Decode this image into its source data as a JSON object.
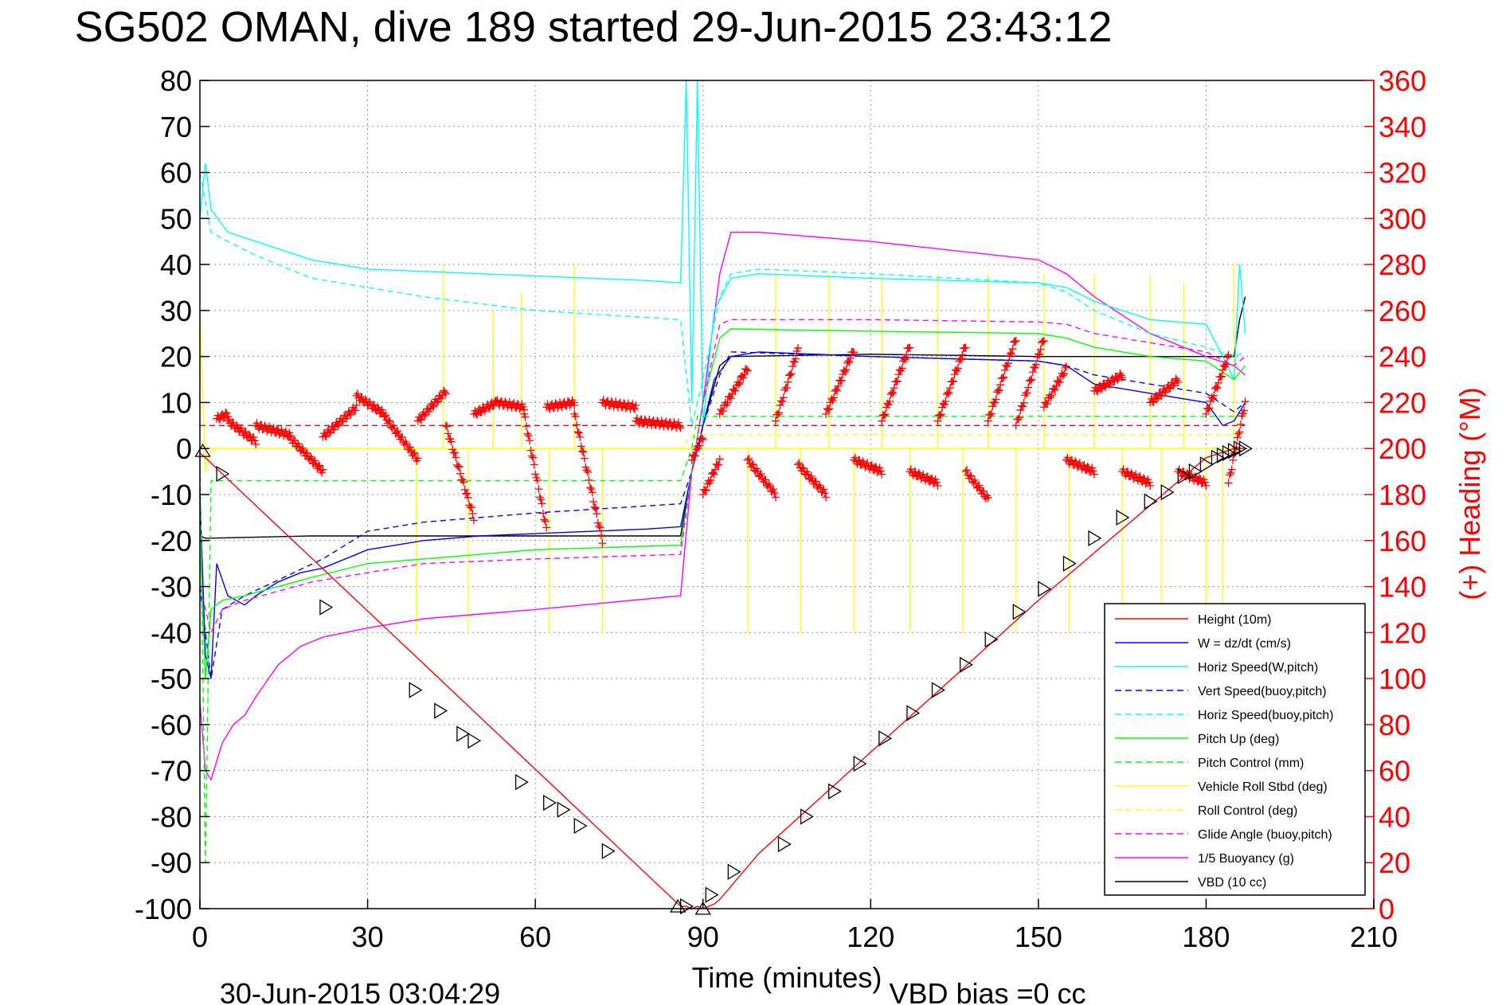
{
  "title": "SG502 OMAN, dive 189 started 29-Jun-2015 23:43:12",
  "xlabel": "Time (minutes)",
  "ylabel_right": "(+) Heading (°M)",
  "footer_left": "30-Jun-2015 03:04:29",
  "footer_right": "VBD bias =0 cc",
  "colors": {
    "height": "#ff0000",
    "w": "#0000ff",
    "horiz_w": "#00ffff",
    "vert_buoy": "#0000ff",
    "horiz_buoy": "#00ffff",
    "pitch": "#00ff00",
    "pitch_ctrl": "#00ff00",
    "roll": "#ffff00",
    "roll_ctrl": "#ffff00",
    "glide": "#ff00ff",
    "buoy": "#ff00ff",
    "vbd": "#000000",
    "heading": "#ff0000",
    "right_axis": "#ff0000"
  },
  "chart_data": {
    "type": "line",
    "xlim": [
      0,
      210
    ],
    "ylim": [
      -100,
      80
    ],
    "y2lim": [
      0,
      360
    ],
    "xticks": [
      0,
      30,
      60,
      90,
      120,
      150,
      180,
      210
    ],
    "yticks": [
      80,
      70,
      60,
      50,
      40,
      30,
      20,
      10,
      0,
      -10,
      -20,
      -30,
      -40,
      -50,
      -60,
      -70,
      -80,
      -90,
      -100
    ],
    "y2ticks": [
      360,
      340,
      320,
      300,
      280,
      260,
      240,
      220,
      200,
      180,
      160,
      140,
      120,
      100,
      80,
      60,
      40,
      20,
      0
    ],
    "grid": true,
    "legend_position": "bottom-right",
    "legend": [
      {
        "label": "Height (10m)",
        "color": "#ff0000",
        "dash": false
      },
      {
        "label": "W = dz/dt (cm/s)",
        "color": "#0000ff",
        "dash": false
      },
      {
        "label": "Horiz Speed(W,pitch)",
        "color": "#00ffff",
        "dash": false
      },
      {
        "label": "Vert Speed(buoy,pitch)",
        "color": "#0000ff",
        "dash": true
      },
      {
        "label": "Horiz Speed(buoy,pitch)",
        "color": "#00ffff",
        "dash": true
      },
      {
        "label": "Pitch Up (deg)",
        "color": "#00ff00",
        "dash": false
      },
      {
        "label": "Pitch Control (mm)",
        "color": "#00ff00",
        "dash": true
      },
      {
        "label": "Vehicle Roll Stbd (deg)",
        "color": "#ffff00",
        "dash": false
      },
      {
        "label": "Roll Control (deg)",
        "color": "#ffff00",
        "dash": true
      },
      {
        "label": "Glide Angle (buoy,pitch)",
        "color": "#ff00ff",
        "dash": true
      },
      {
        "label": "1/5 Buoyancy (g)",
        "color": "#ff00ff",
        "dash": false
      },
      {
        "label": "VBD (10 cc)",
        "color": "#000000",
        "dash": false
      }
    ],
    "series": [
      {
        "id": "vbd",
        "color": "#000000",
        "dash": false,
        "x": [
          0,
          1,
          20,
          40,
          60,
          80,
          86,
          88,
          90,
          93,
          95,
          120,
          150,
          175,
          185,
          186,
          187
        ],
        "y": [
          -19,
          -19.5,
          -19,
          -19,
          -19,
          -19,
          -19,
          -5,
          5,
          18,
          20,
          20.5,
          20,
          20,
          20,
          28,
          33
        ]
      },
      {
        "id": "buoy",
        "color": "#ff00ff",
        "dash": false,
        "x": [
          0,
          1,
          2,
          4,
          6,
          8,
          10,
          14,
          18,
          22,
          30,
          40,
          60,
          86,
          88,
          90,
          93,
          95,
          100,
          120,
          150,
          155,
          160,
          170,
          180,
          185,
          187
        ],
        "y": [
          -55,
          -70,
          -72,
          -64,
          -60,
          -58,
          -54,
          -47,
          -43,
          -41,
          -39,
          -37,
          -35,
          -32,
          -5,
          10,
          38,
          47,
          47,
          45,
          41,
          38,
          33,
          25,
          20,
          18,
          16
        ]
      },
      {
        "id": "horiz_w",
        "color": "#00ffff",
        "dash": false,
        "x": [
          0,
          1,
          2,
          5,
          10,
          20,
          30,
          40,
          50,
          60,
          70,
          80,
          86,
          87,
          88,
          89,
          90,
          92,
          95,
          100,
          120,
          150,
          155,
          160,
          170,
          180,
          183,
          185,
          186,
          187
        ],
        "y": [
          50,
          62,
          52,
          47,
          45,
          41,
          39,
          38.5,
          38,
          37.5,
          37,
          36.5,
          36,
          80,
          10,
          80,
          5,
          30,
          37,
          38,
          37,
          36,
          35,
          32,
          28,
          27,
          20,
          15,
          40,
          25
        ]
      },
      {
        "id": "horiz_buoy",
        "color": "#00ffff",
        "dash": true,
        "x": [
          0,
          2,
          5,
          10,
          20,
          30,
          40,
          60,
          86,
          88,
          90,
          93,
          95,
          100,
          120,
          150,
          155,
          160,
          170,
          180,
          185,
          187
        ],
        "y": [
          60,
          47,
          45,
          42,
          37,
          35,
          33,
          30,
          28,
          5,
          15,
          33,
          38,
          39,
          38,
          36,
          34,
          30,
          25,
          22,
          20,
          21
        ]
      },
      {
        "id": "w",
        "color": "#0000ff",
        "dash": false,
        "x": [
          0,
          1,
          2,
          3,
          5,
          8,
          10,
          14,
          18,
          22,
          30,
          40,
          50,
          60,
          70,
          80,
          86,
          88,
          90,
          92,
          95,
          100,
          120,
          150,
          155,
          160,
          170,
          180,
          183,
          185,
          187
        ],
        "y": [
          -10,
          -45,
          -50,
          -25,
          -32,
          -34,
          -32,
          -29,
          -27,
          -26,
          -22,
          -20,
          -19,
          -18.5,
          -18,
          -17.5,
          -17,
          -5,
          5,
          15,
          20,
          21,
          20,
          19,
          18,
          14,
          12,
          10,
          5,
          6,
          10
        ]
      },
      {
        "id": "vert_buoy",
        "color": "#0000ff",
        "dash": true,
        "x": [
          0,
          2,
          4,
          8,
          15,
          22,
          30,
          40,
          60,
          86,
          88,
          90,
          93,
          95,
          120,
          150,
          155,
          160,
          170,
          180,
          185,
          187
        ],
        "y": [
          -30,
          -50,
          -35,
          -32,
          -28,
          -24,
          -18,
          -16,
          -14,
          -12,
          -5,
          5,
          16,
          21,
          20,
          19,
          18,
          16,
          14,
          12,
          8,
          10
        ]
      },
      {
        "id": "pitch",
        "color": "#00ff00",
        "dash": false,
        "x": [
          0,
          1,
          2,
          4,
          8,
          14,
          20,
          30,
          40,
          60,
          86,
          88,
          90,
          93,
          95,
          120,
          150,
          155,
          160,
          170,
          180,
          185,
          187
        ],
        "y": [
          -20,
          -50,
          -35,
          -33,
          -32,
          -30,
          -28,
          -25,
          -24,
          -22,
          -21,
          -5,
          10,
          24,
          26,
          25.5,
          25,
          24,
          22,
          20,
          19,
          15,
          18
        ]
      },
      {
        "id": "glide",
        "color": "#ff00ff",
        "dash": true,
        "x": [
          0,
          2,
          4,
          8,
          14,
          20,
          30,
          40,
          60,
          86,
          88,
          90,
          93,
          95,
          120,
          150,
          155,
          160,
          170,
          180,
          185,
          187
        ],
        "y": [
          -30,
          -40,
          -35,
          -33,
          -31,
          -29,
          -27,
          -25,
          -24,
          -23,
          -5,
          10,
          27,
          28,
          28,
          27.5,
          27,
          25,
          23,
          21,
          18,
          20
        ]
      },
      {
        "id": "pitch_ctrl",
        "color": "#00ff00",
        "dash": true,
        "x": [
          0,
          1,
          2,
          3,
          10,
          40,
          86,
          88,
          89,
          100,
          150,
          180,
          187
        ],
        "y": [
          0,
          -90,
          -7,
          -7,
          -7,
          -7,
          -7,
          0,
          7,
          7,
          7,
          7,
          7
        ]
      },
      {
        "id": "roll_ctrl",
        "color": "#ffff00",
        "dash": true,
        "x": [
          0,
          3,
          40,
          86,
          88,
          187
        ],
        "y": [
          0,
          0,
          0,
          0,
          3,
          3
        ]
      },
      {
        "id": "roll",
        "color": "#ffff00",
        "dash": false,
        "x": [
          0,
          1,
          2,
          3,
          20,
          40,
          86,
          88,
          187
        ],
        "y": [
          30,
          -5,
          0,
          0,
          0,
          0,
          0,
          0,
          0
        ]
      },
      {
        "id": "height",
        "color": "#ff0000",
        "dash": false,
        "x": [
          0,
          1,
          4,
          86,
          87,
          88,
          89,
          90,
          92,
          93,
          100,
          150,
          180,
          185,
          187
        ],
        "y": [
          -1,
          -2,
          -5.5,
          -99.5,
          -99.5,
          -100,
          -99.5,
          -100,
          -99,
          -98,
          -88,
          -33,
          -2,
          0,
          0
        ]
      }
    ],
    "roll_spikes": [
      {
        "x": 38.7,
        "y": -40
      },
      {
        "x": 43.5,
        "y": 40
      },
      {
        "x": 48,
        "y": -40
      },
      {
        "x": 52.5,
        "y": 30
      },
      {
        "x": 57.5,
        "y": 34
      },
      {
        "x": 62.5,
        "y": -40
      },
      {
        "x": 67,
        "y": 40
      },
      {
        "x": 72,
        "y": -40
      },
      {
        "x": 98,
        "y": -40
      },
      {
        "x": 103,
        "y": 38
      },
      {
        "x": 107.5,
        "y": -40
      },
      {
        "x": 112.5,
        "y": 38
      },
      {
        "x": 117,
        "y": -40
      },
      {
        "x": 122,
        "y": 38
      },
      {
        "x": 127,
        "y": -40
      },
      {
        "x": 132,
        "y": 38
      },
      {
        "x": 136.5,
        "y": -40
      },
      {
        "x": 141,
        "y": 38
      },
      {
        "x": 146,
        "y": -40
      },
      {
        "x": 151,
        "y": 38
      },
      {
        "x": 155.5,
        "y": -40
      },
      {
        "x": 160,
        "y": 38
      },
      {
        "x": 165,
        "y": -40
      },
      {
        "x": 170,
        "y": 38
      },
      {
        "x": 172,
        "y": -40
      },
      {
        "x": 176,
        "y": 36
      },
      {
        "x": 180,
        "y": -40
      },
      {
        "x": 183,
        "y": -40
      },
      {
        "x": 185,
        "y": 40
      }
    ],
    "heading_red_dashed": {
      "x": [
        0,
        187
      ],
      "y2": [
        210,
        210
      ]
    },
    "heading_curve_segments": [
      {
        "x0": 3,
        "x1": 5,
        "y0": 213,
        "y1": 215
      },
      {
        "x0": 5,
        "x1": 10,
        "y0": 212,
        "y1": 203
      },
      {
        "x0": 10,
        "x1": 16,
        "y0": 210,
        "y1": 206
      },
      {
        "x0": 16,
        "x1": 22,
        "y0": 205,
        "y1": 190
      },
      {
        "x0": 22,
        "x1": 28,
        "y0": 205,
        "y1": 218
      },
      {
        "x0": 28,
        "x1": 33,
        "y0": 223,
        "y1": 215
      },
      {
        "x0": 33,
        "x1": 39,
        "y0": 214,
        "y1": 195
      },
      {
        "x0": 39,
        "x1": 44,
        "y0": 212,
        "y1": 225
      },
      {
        "x0": 44,
        "x1": 49,
        "y0": 210,
        "y1": 170
      },
      {
        "x0": 49,
        "x1": 53,
        "y0": 215,
        "y1": 220
      },
      {
        "x0": 53,
        "x1": 58,
        "y0": 220,
        "y1": 218
      },
      {
        "x0": 58,
        "x1": 62,
        "y0": 215,
        "y1": 165
      },
      {
        "x0": 62,
        "x1": 67,
        "y0": 218,
        "y1": 220
      },
      {
        "x0": 67,
        "x1": 72,
        "y0": 215,
        "y1": 160
      },
      {
        "x0": 72,
        "x1": 78,
        "y0": 220,
        "y1": 218
      },
      {
        "x0": 78,
        "x1": 86,
        "y0": 212,
        "y1": 210
      },
      {
        "x0": 88,
        "x1": 90,
        "y0": 195,
        "y1": 205
      },
      {
        "x0": 90,
        "x1": 93,
        "y0": 180,
        "y1": 195
      },
      {
        "x0": 93,
        "x1": 98,
        "y0": 215,
        "y1": 235
      },
      {
        "x0": 98,
        "x1": 103,
        "y0": 195,
        "y1": 180
      },
      {
        "x0": 103,
        "x1": 107,
        "y0": 212,
        "y1": 243
      },
      {
        "x0": 107,
        "x1": 112,
        "y0": 193,
        "y1": 180
      },
      {
        "x0": 112,
        "x1": 117,
        "y0": 215,
        "y1": 243
      },
      {
        "x0": 117,
        "x1": 122,
        "y0": 195,
        "y1": 190
      },
      {
        "x0": 122,
        "x1": 127,
        "y0": 212,
        "y1": 245
      },
      {
        "x0": 127,
        "x1": 132,
        "y0": 190,
        "y1": 185
      },
      {
        "x0": 132,
        "x1": 137,
        "y0": 212,
        "y1": 245
      },
      {
        "x0": 137,
        "x1": 141,
        "y0": 190,
        "y1": 178
      },
      {
        "x0": 141,
        "x1": 146,
        "y0": 212,
        "y1": 248
      },
      {
        "x0": 146,
        "x1": 151,
        "y0": 210,
        "y1": 248
      },
      {
        "x0": 151,
        "x1": 155,
        "y0": 218,
        "y1": 235
      },
      {
        "x0": 155,
        "x1": 160,
        "y0": 195,
        "y1": 190
      },
      {
        "x0": 160,
        "x1": 165,
        "y0": 225,
        "y1": 232
      },
      {
        "x0": 165,
        "x1": 170,
        "y0": 190,
        "y1": 185
      },
      {
        "x0": 170,
        "x1": 175,
        "y0": 220,
        "y1": 230
      },
      {
        "x0": 175,
        "x1": 180,
        "y0": 190,
        "y1": 185
      },
      {
        "x0": 180,
        "x1": 184,
        "y0": 215,
        "y1": 240
      },
      {
        "x0": 184,
        "x1": 187,
        "y0": 185,
        "y1": 220
      }
    ],
    "markers_right": [
      {
        "x": 4,
        "y": -5.5
      },
      {
        "x": 22.5,
        "y": -34.5
      },
      {
        "x": 38.5,
        "y": -52.5
      },
      {
        "x": 43,
        "y": -57
      },
      {
        "x": 47,
        "y": -62
      },
      {
        "x": 49,
        "y": -63.5
      },
      {
        "x": 57.5,
        "y": -72.5
      },
      {
        "x": 62.5,
        "y": -77
      },
      {
        "x": 65,
        "y": -78.5
      },
      {
        "x": 68,
        "y": -82
      },
      {
        "x": 73,
        "y": -87.5
      },
      {
        "x": 87,
        "y": -99.5
      },
      {
        "x": 91.5,
        "y": -97
      },
      {
        "x": 95.5,
        "y": -92
      },
      {
        "x": 104.5,
        "y": -86
      },
      {
        "x": 108.5,
        "y": -80
      },
      {
        "x": 113.5,
        "y": -74.5
      },
      {
        "x": 118,
        "y": -68.5
      },
      {
        "x": 122.5,
        "y": -63
      },
      {
        "x": 127.5,
        "y": -57.5
      },
      {
        "x": 132,
        "y": -52.5
      },
      {
        "x": 137,
        "y": -47
      },
      {
        "x": 141.5,
        "y": -41.5
      },
      {
        "x": 146.5,
        "y": -35.5
      },
      {
        "x": 151,
        "y": -30.5
      },
      {
        "x": 155.5,
        "y": -25
      },
      {
        "x": 160,
        "y": -19.5
      },
      {
        "x": 165,
        "y": -15
      },
      {
        "x": 170,
        "y": -11.5
      },
      {
        "x": 173,
        "y": -9.5
      },
      {
        "x": 176,
        "y": -6
      },
      {
        "x": 178,
        "y": -5
      },
      {
        "x": 180,
        "y": -3.5
      },
      {
        "x": 182,
        "y": -2
      },
      {
        "x": 183,
        "y": -1.5
      },
      {
        "x": 184,
        "y": -1
      },
      {
        "x": 185,
        "y": -0.5
      },
      {
        "x": 186,
        "y": 0
      },
      {
        "x": 187,
        "y": 0
      }
    ],
    "markers_up": [
      {
        "x": 0.5,
        "y": -0.5
      },
      {
        "x": 85.5,
        "y": -99.5
      },
      {
        "x": 90,
        "y": -100
      }
    ]
  }
}
